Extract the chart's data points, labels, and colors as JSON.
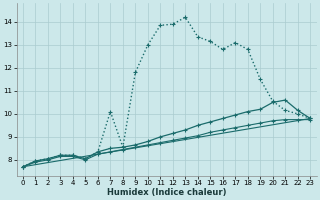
{
  "xlabel": "Humidex (Indice chaleur)",
  "xlim": [
    -0.5,
    23.5
  ],
  "ylim": [
    7.3,
    14.8
  ],
  "xticks": [
    0,
    1,
    2,
    3,
    4,
    5,
    6,
    7,
    8,
    9,
    10,
    11,
    12,
    13,
    14,
    15,
    16,
    17,
    18,
    19,
    20,
    21,
    22,
    23
  ],
  "yticks": [
    8,
    9,
    10,
    11,
    12,
    13,
    14
  ],
  "bg_color": "#cce8ea",
  "grid_color": "#aacccf",
  "line_color": "#1a6b6b",
  "lines": [
    {
      "x": [
        0,
        1,
        2,
        3,
        4,
        5,
        6,
        7,
        8,
        9,
        10,
        11,
        12,
        13,
        14,
        15,
        16,
        17,
        18,
        19,
        20,
        21,
        22,
        23
      ],
      "y": [
        7.7,
        7.95,
        8.05,
        8.2,
        8.2,
        8.05,
        8.35,
        10.1,
        8.55,
        11.8,
        13.0,
        13.85,
        13.9,
        14.2,
        13.35,
        13.15,
        12.8,
        13.1,
        12.8,
        11.5,
        10.55,
        10.15,
        10.0,
        9.8
      ],
      "linestyle": ":",
      "marker": "+",
      "markersize": 3.5,
      "linewidth": 1.0
    },
    {
      "x": [
        0,
        1,
        2,
        3,
        4,
        5,
        6,
        7,
        8,
        9,
        10,
        11,
        12,
        13,
        14,
        15,
        16,
        17,
        18,
        19,
        20,
        21,
        22,
        23
      ],
      "y": [
        7.7,
        7.95,
        8.05,
        8.2,
        8.2,
        8.05,
        8.35,
        8.5,
        8.55,
        8.65,
        8.8,
        9.0,
        9.15,
        9.3,
        9.5,
        9.65,
        9.8,
        9.95,
        10.1,
        10.2,
        10.5,
        10.6,
        10.15,
        9.8
      ],
      "linestyle": "-",
      "marker": "+",
      "markersize": 3.0,
      "linewidth": 0.9
    },
    {
      "x": [
        0,
        1,
        2,
        3,
        4,
        5,
        6,
        7,
        8,
        9,
        10,
        11,
        12,
        13,
        14,
        15,
        16,
        17,
        18,
        19,
        20,
        21,
        22,
        23
      ],
      "y": [
        7.7,
        7.9,
        8.0,
        8.15,
        8.15,
        8.0,
        8.25,
        8.35,
        8.45,
        8.55,
        8.65,
        8.75,
        8.85,
        8.95,
        9.05,
        9.2,
        9.3,
        9.4,
        9.5,
        9.6,
        9.7,
        9.75,
        9.75,
        9.75
      ],
      "linestyle": "-",
      "marker": "+",
      "markersize": 2.5,
      "linewidth": 0.8
    },
    {
      "x": [
        0,
        23
      ],
      "y": [
        7.7,
        9.8
      ],
      "linestyle": "-",
      "marker": null,
      "markersize": 0,
      "linewidth": 0.8
    }
  ]
}
